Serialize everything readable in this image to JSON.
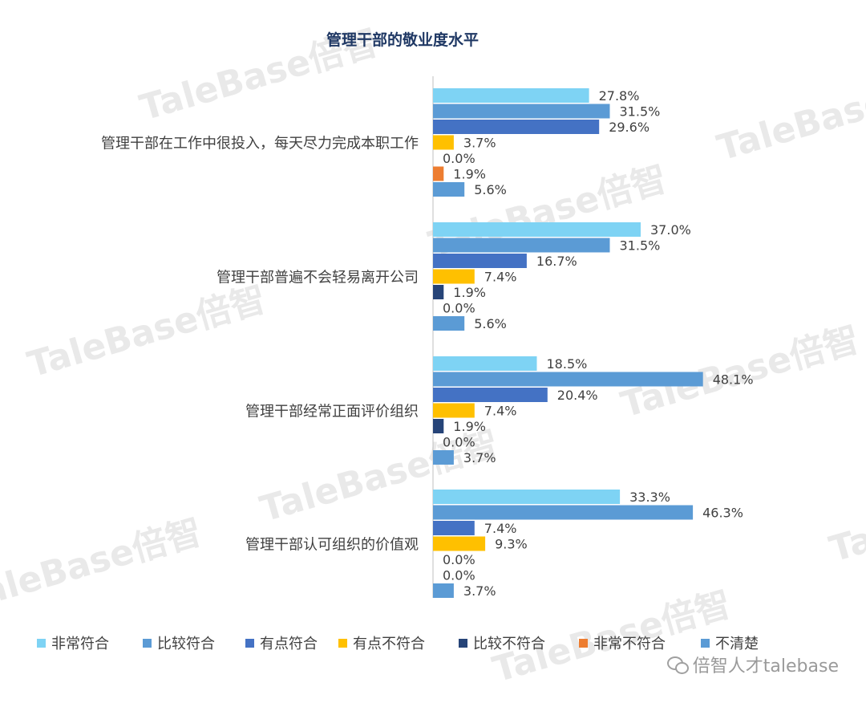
{
  "chart_data": {
    "type": "bar",
    "orientation": "horizontal",
    "title": "管理干部的敬业度水平",
    "categories": [
      "管理干部在工作中很投入，每天尽力完成本职工作",
      "管理干部普遍不会轻易离开公司",
      "管理干部经常正面评价组织",
      "管理干部认可组织的价值观"
    ],
    "series": [
      {
        "name": "非常符合",
        "color": "#7ED3F4",
        "values": [
          27.8,
          37.0,
          18.5,
          33.3
        ],
        "labels": [
          "27.8%",
          "37.0%",
          "18.5%",
          "33.3%"
        ]
      },
      {
        "name": "比较符合",
        "color": "#5B9BD5",
        "values": [
          31.5,
          31.5,
          48.1,
          46.3
        ],
        "labels": [
          "31.5%",
          "31.5%",
          "48.1%",
          "46.3%"
        ]
      },
      {
        "name": "有点符合",
        "color": "#4472C4",
        "values": [
          29.6,
          16.7,
          20.4,
          7.4
        ],
        "labels": [
          "29.6%",
          "16.7%",
          "20.4%",
          "7.4%"
        ]
      },
      {
        "name": "有点不符合",
        "color": "#FFC000",
        "values": [
          3.7,
          7.4,
          7.4,
          9.3
        ],
        "labels": [
          "3.7%",
          "7.4%",
          "7.4%",
          "9.3%"
        ]
      },
      {
        "name": "比较不符合",
        "color": "#264478",
        "values": [
          0.0,
          1.9,
          1.9,
          0.0
        ],
        "labels": [
          "0.0%",
          "1.9%",
          "1.9%",
          "0.0%"
        ]
      },
      {
        "name": "非常不符合",
        "color": "#ED7D31",
        "values": [
          1.9,
          0.0,
          0.0,
          0.0
        ],
        "labels": [
          "1.9%",
          "0.0%",
          "0.0%",
          "0.0%"
        ]
      },
      {
        "name": "不清楚",
        "color": "#5B9BD5",
        "values": [
          5.6,
          5.6,
          3.7,
          3.7
        ],
        "labels": [
          "5.6%",
          "5.6%",
          "3.7%",
          "3.7%"
        ]
      }
    ],
    "xlim": [
      0,
      50
    ],
    "legend_position": "bottom",
    "grid": false
  },
  "colors": {
    "title": "#1F3864",
    "text": "#404040",
    "axis": "#bfbfbf",
    "watermark": "#e9e9e9"
  },
  "watermark_text": "TaleBase倍智",
  "footer": {
    "brand": "倍智人才talebase",
    "icon": "wechat-icon"
  }
}
